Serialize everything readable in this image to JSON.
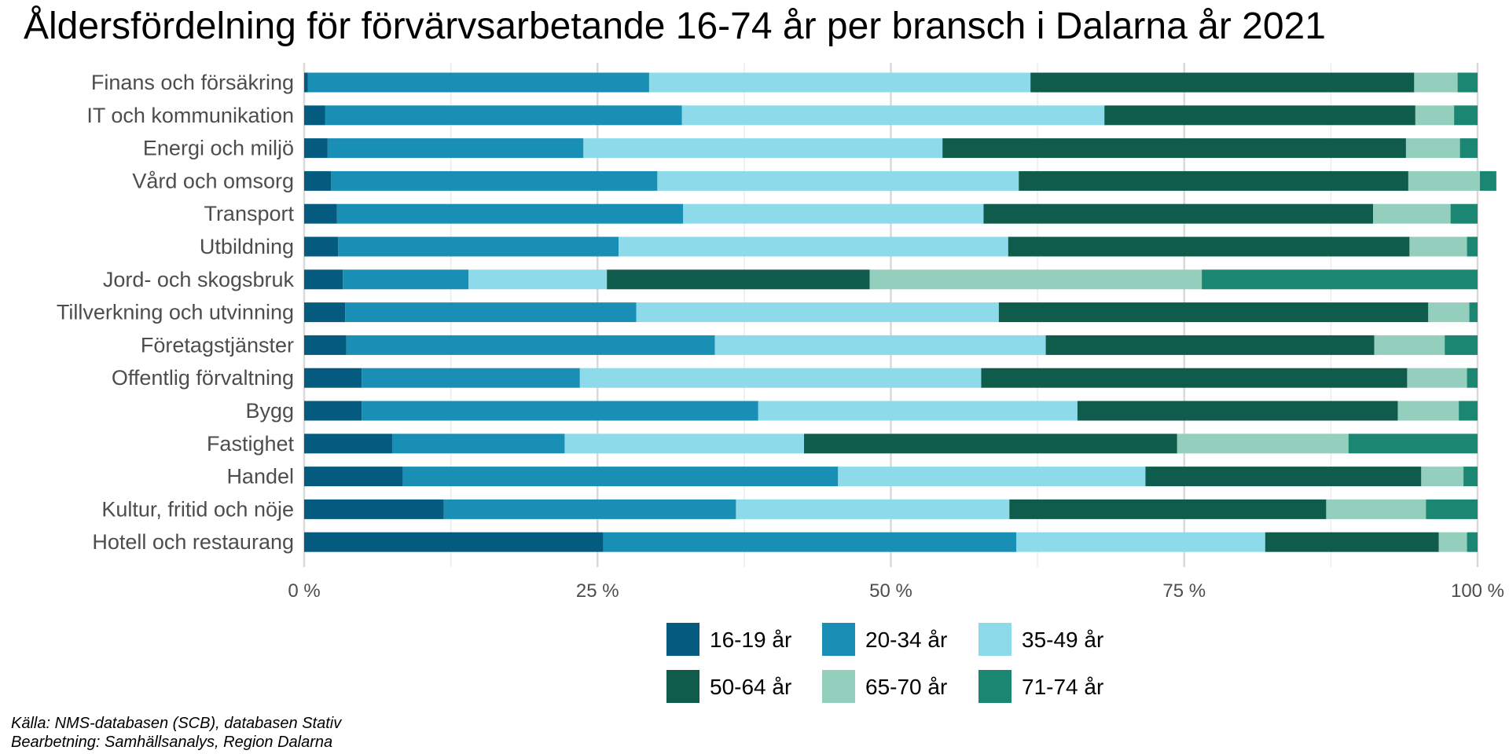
{
  "chart_data": {
    "type": "bar",
    "orientation": "horizontal",
    "stacked": "percent",
    "title": "Åldersfördelning för förvärvsarbetande 16-74 år per bransch i Dalarna år 2021",
    "xlabel": "",
    "ylabel": "",
    "xlim": [
      0,
      100
    ],
    "x_ticks": [
      "0 %",
      "25 %",
      "50 %",
      "75 %",
      "100 %"
    ],
    "grid": true,
    "legend_position": "bottom",
    "categories": [
      "Finans och försäkring",
      "IT och kommunikation",
      "Energi och miljö",
      "Vård och omsorg",
      "Transport",
      "Utbildning",
      "Jord- och skogsbruk",
      "Tillverkning och utvinning",
      "Företagstjänster",
      "Offentlig förvaltning",
      "Bygg",
      "Fastighet",
      "Handel",
      "Kultur, fritid och nöje",
      "Hotell och restaurang"
    ],
    "series": [
      {
        "name": "16-19 år",
        "color": "#045a7f",
        "values": [
          0.3,
          1.8,
          2.0,
          2.3,
          2.8,
          2.9,
          3.3,
          3.5,
          3.6,
          4.9,
          4.9,
          7.5,
          8.4,
          11.9,
          25.5
        ]
      },
      {
        "name": "20-34 år",
        "color": "#1a8fb6",
        "values": [
          29.1,
          30.4,
          21.8,
          27.8,
          29.5,
          23.9,
          10.7,
          24.8,
          31.4,
          18.6,
          33.8,
          14.7,
          37.1,
          24.9,
          35.2
        ]
      },
      {
        "name": "35-49 år",
        "color": "#8ddbea",
        "values": [
          32.5,
          36.0,
          30.6,
          30.8,
          25.6,
          33.2,
          11.8,
          30.9,
          28.2,
          34.2,
          27.2,
          20.4,
          26.2,
          23.3,
          21.2
        ]
      },
      {
        "name": "50-64 år",
        "color": "#0f5c4c",
        "values": [
          32.7,
          26.5,
          39.5,
          33.2,
          33.2,
          34.2,
          22.4,
          36.6,
          28.0,
          36.3,
          27.3,
          31.8,
          23.5,
          27.0,
          14.8
        ]
      },
      {
        "name": "65-70 år",
        "color": "#94cebd",
        "values": [
          3.7,
          3.3,
          4.6,
          6.1,
          6.6,
          4.9,
          28.3,
          3.5,
          6.0,
          5.1,
          5.2,
          14.6,
          3.6,
          8.5,
          2.4
        ]
      },
      {
        "name": "71-74 år",
        "color": "#1b8672",
        "values": [
          1.7,
          2.0,
          1.5,
          1.4,
          2.3,
          0.9,
          23.5,
          0.7,
          2.8,
          0.9,
          1.6,
          11.0,
          1.2,
          4.4,
          0.9
        ]
      }
    ]
  },
  "caption": {
    "source": "Källa: NMS-databasen (SCB), databasen Stativ",
    "processing": "Bearbetning: Samhällsanalys, Region Dalarna"
  }
}
